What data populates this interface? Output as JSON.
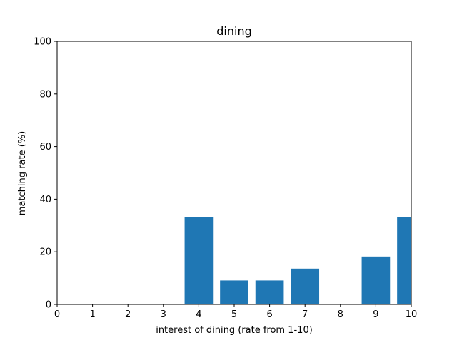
{
  "chart_data": {
    "type": "bar",
    "title": "dining",
    "xlabel": "interest of dining (rate from 1-10)",
    "ylabel": "matching rate (%)",
    "xlim": [
      0,
      10
    ],
    "ylim": [
      0,
      100
    ],
    "xticks": [
      0,
      1,
      2,
      3,
      4,
      5,
      6,
      7,
      8,
      9,
      10
    ],
    "yticks": [
      0,
      20,
      40,
      60,
      80,
      100
    ],
    "bar_width": 0.8,
    "bar_color": "#1f77b4",
    "grid": false,
    "legend": "none",
    "x": [
      4,
      5,
      6,
      7,
      9,
      10
    ],
    "values": [
      33.3,
      9.1,
      9.1,
      13.6,
      18.2,
      33.3
    ]
  }
}
